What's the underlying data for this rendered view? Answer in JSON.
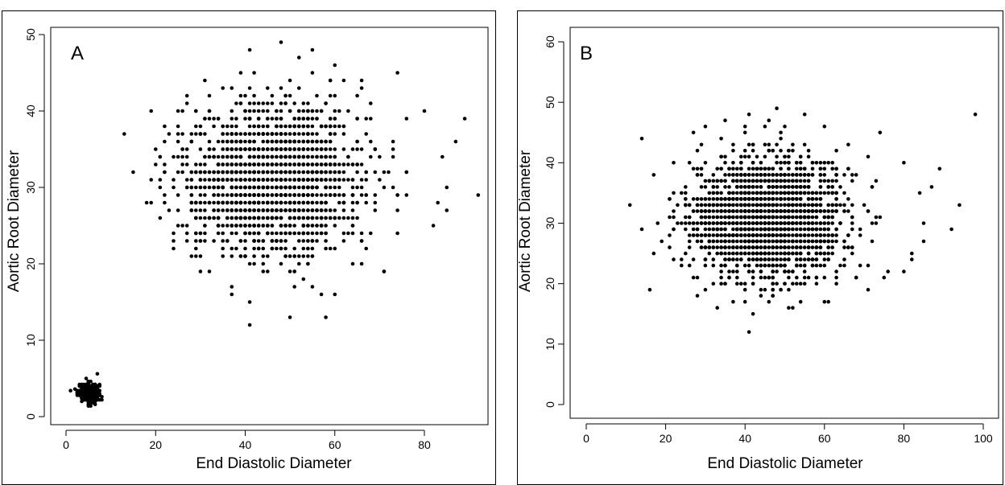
{
  "chart_data": [
    {
      "type": "scatter",
      "panel_label": "A",
      "xlabel": "End Diastolic Diameter",
      "ylabel": "Aortic Root Diameter",
      "xlim": [
        0,
        95
      ],
      "ylim": [
        0,
        50
      ],
      "xticks": [
        0,
        20,
        40,
        60,
        80
      ],
      "yticks": [
        0,
        10,
        20,
        30,
        40,
        50
      ],
      "grid": false,
      "marker_color": "#000000",
      "clusters": [
        {
          "x_center": 5,
          "x_sd": 1.2,
          "y_center": 3.2,
          "y_sd": 0.6,
          "count": 260,
          "x_step": 0.5,
          "y_step": 0.2
        },
        {
          "x_center": 46,
          "x_sd": 10,
          "y_center": 31,
          "y_sd": 5,
          "count": 1900,
          "x_step": 1,
          "y_step": 1
        }
      ],
      "outliers": [
        [
          41,
          12
        ],
        [
          48,
          49
        ],
        [
          55,
          48
        ],
        [
          41,
          48
        ],
        [
          92,
          29
        ],
        [
          89,
          39
        ],
        [
          85,
          27
        ],
        [
          82,
          25
        ],
        [
          71,
          19
        ],
        [
          37,
          17
        ],
        [
          21,
          26
        ],
        [
          21,
          34
        ],
        [
          24,
          23
        ],
        [
          28,
          21
        ],
        [
          85,
          30
        ],
        [
          87,
          36
        ],
        [
          74,
          45
        ],
        [
          60,
          46
        ],
        [
          66,
          43
        ],
        [
          80,
          40
        ],
        [
          7,
          5.6
        ]
      ]
    },
    {
      "type": "scatter",
      "panel_label": "B",
      "xlabel": "End Diastolic Diameter",
      "ylabel": "Aortic Root Diameter",
      "xlim": [
        0,
        100
      ],
      "ylim": [
        0,
        60
      ],
      "xticks": [
        0,
        20,
        40,
        60,
        80,
        100
      ],
      "yticks": [
        0,
        10,
        20,
        30,
        40,
        50,
        60
      ],
      "grid": false,
      "marker_color": "#000000",
      "clusters": [
        {
          "x_center": 46,
          "x_sd": 10,
          "y_center": 31,
          "y_sd": 5,
          "count": 1900,
          "x_step": 1,
          "y_step": 1
        }
      ],
      "outliers": [
        [
          98,
          48
        ],
        [
          41,
          12
        ],
        [
          48,
          49
        ],
        [
          55,
          48
        ],
        [
          41,
          48
        ],
        [
          92,
          29
        ],
        [
          94,
          33
        ],
        [
          89,
          39
        ],
        [
          85,
          27
        ],
        [
          82,
          25
        ],
        [
          71,
          19
        ],
        [
          37,
          17
        ],
        [
          21,
          26
        ],
        [
          21,
          34
        ],
        [
          24,
          23
        ],
        [
          28,
          21
        ],
        [
          85,
          30
        ],
        [
          87,
          36
        ],
        [
          74,
          45
        ],
        [
          60,
          46
        ],
        [
          66,
          43
        ],
        [
          80,
          40
        ]
      ]
    }
  ]
}
